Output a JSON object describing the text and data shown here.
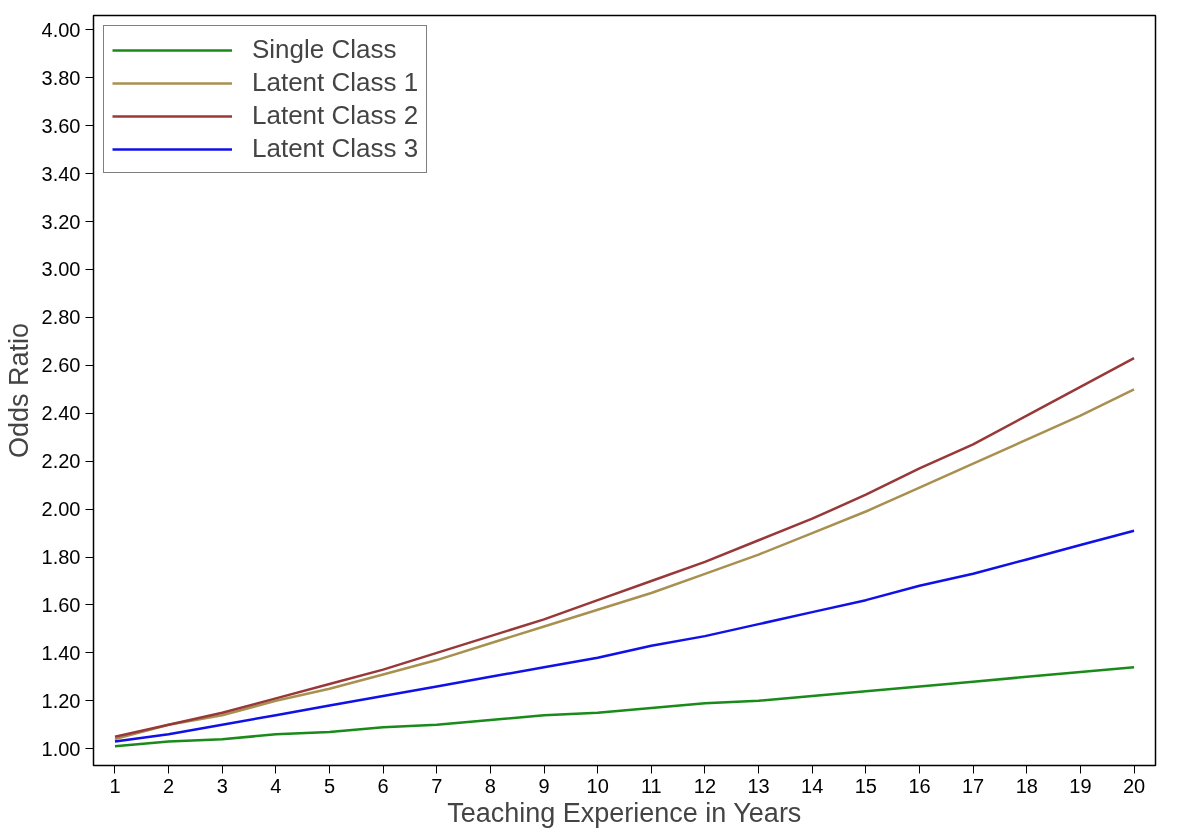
{
  "chart_data": {
    "type": "line",
    "xlabel": "Teaching Experience in Years",
    "ylabel": "Odds Ratio",
    "x": [
      1,
      2,
      3,
      4,
      5,
      6,
      7,
      8,
      9,
      10,
      11,
      12,
      13,
      14,
      15,
      16,
      17,
      18,
      19,
      20
    ],
    "xlim": [
      0.6,
      20.4
    ],
    "xticks": [
      1,
      2,
      3,
      4,
      5,
      6,
      7,
      8,
      9,
      10,
      11,
      12,
      13,
      14,
      15,
      16,
      17,
      18,
      19,
      20
    ],
    "ylim": [
      0.93,
      4.06
    ],
    "yticks": [
      {
        "value": 1,
        "label": "1.00"
      },
      {
        "value": 1.2,
        "label": "1.20"
      },
      {
        "value": 1.4,
        "label": "1.40"
      },
      {
        "value": 1.6,
        "label": "1.60"
      },
      {
        "value": 1.8,
        "label": "1.80"
      },
      {
        "value": 2,
        "label": "2.00"
      },
      {
        "value": 2.2,
        "label": "2.20"
      },
      {
        "value": 2.4,
        "label": "2.40"
      },
      {
        "value": 2.6,
        "label": "2.60"
      },
      {
        "value": 2.8,
        "label": "2.80"
      },
      {
        "value": 3,
        "label": "3.00"
      },
      {
        "value": 3.2,
        "label": "3.20"
      },
      {
        "value": 3.4,
        "label": "3.40"
      },
      {
        "value": 3.6,
        "label": "3.60"
      },
      {
        "value": 3.8,
        "label": "3.80"
      },
      {
        "value": 4,
        "label": "4.00"
      }
    ],
    "grid": false,
    "legend": "top left",
    "marker": "none",
    "line_style": "solid",
    "series": [
      {
        "name": "Single Class",
        "color": "#1a8a1a",
        "values": [
          1.01,
          1.03,
          1.04,
          1.06,
          1.07,
          1.09,
          1.1,
          1.12,
          1.14,
          1.15,
          1.17,
          1.19,
          1.2,
          1.22,
          1.24,
          1.26,
          1.28,
          1.3,
          1.32,
          1.34
        ]
      },
      {
        "name": "Latent Class 1",
        "color": "#a89050",
        "values": [
          1.04,
          1.1,
          1.14,
          1.2,
          1.25,
          1.31,
          1.37,
          1.44,
          1.51,
          1.58,
          1.65,
          1.73,
          1.81,
          1.9,
          1.99,
          2.09,
          2.19,
          2.29,
          2.39,
          2.5
        ]
      },
      {
        "name": "Latent Class 2",
        "color": "#983838",
        "values": [
          1.05,
          1.1,
          1.15,
          1.21,
          1.27,
          1.33,
          1.4,
          1.47,
          1.54,
          1.62,
          1.7,
          1.78,
          1.87,
          1.96,
          2.06,
          2.17,
          2.27,
          2.39,
          2.51,
          2.63
        ]
      },
      {
        "name": "Latent Class 3",
        "color": "#1010e8",
        "values": [
          1.03,
          1.06,
          1.1,
          1.14,
          1.18,
          1.22,
          1.26,
          1.3,
          1.34,
          1.38,
          1.43,
          1.47,
          1.52,
          1.57,
          1.62,
          1.68,
          1.73,
          1.79,
          1.85,
          1.91
        ]
      }
    ]
  }
}
